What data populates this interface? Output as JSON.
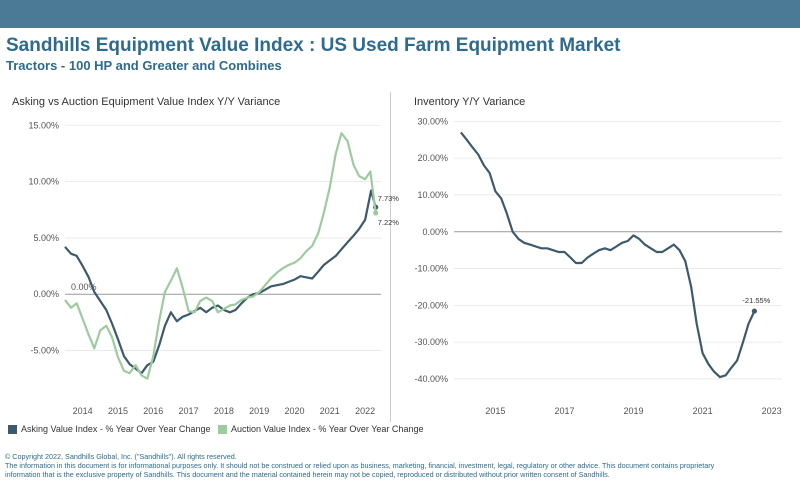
{
  "header": {
    "title": "Sandhills Equipment Value Index : US Used Farm Equipment Market",
    "subtitle": "Tractors - 100 HP and Greater and Combines"
  },
  "colors": {
    "topbar": "#4a7a96",
    "asking": "#3d5a6c",
    "auction": "#9ecb9e",
    "title": "#2e6b8c"
  },
  "chart_data": [
    {
      "type": "line",
      "title": "Asking vs Auction Equipment Value Index Y/Y Variance",
      "xlabel": "",
      "ylabel": "",
      "xlim": [
        2013.5,
        2022.45
      ],
      "ylim": [
        -8.5,
        16.0
      ],
      "y_ticks": [
        -5,
        0,
        5,
        10,
        15
      ],
      "y_tick_labels": [
        "-5.00%",
        "0.00%",
        "5.00%",
        "10.00%",
        "15.00%"
      ],
      "x_ticks": [
        2014,
        2015,
        2016,
        2017,
        2018,
        2019,
        2020,
        2021,
        2022
      ],
      "x_tick_labels": [
        "2014",
        "2015",
        "2016",
        "2017",
        "2018",
        "2019",
        "2020",
        "2021",
        "2022"
      ],
      "zero_label": "0.00%",
      "series": [
        {
          "name": "Asking Value Index - % Year Over Year Change",
          "x": [
            2013.5,
            2013.67,
            2013.83,
            2014.0,
            2014.17,
            2014.33,
            2014.5,
            2014.67,
            2014.83,
            2015.0,
            2015.17,
            2015.33,
            2015.5,
            2015.67,
            2015.83,
            2016.0,
            2016.17,
            2016.33,
            2016.5,
            2016.67,
            2016.83,
            2017.0,
            2017.17,
            2017.33,
            2017.5,
            2017.67,
            2017.83,
            2018.0,
            2018.17,
            2018.33,
            2018.5,
            2018.67,
            2018.83,
            2019.0,
            2019.17,
            2019.33,
            2019.5,
            2019.67,
            2019.83,
            2020.0,
            2020.17,
            2020.33,
            2020.5,
            2020.67,
            2020.83,
            2021.0,
            2021.17,
            2021.33,
            2021.5,
            2021.67,
            2021.83,
            2022.0,
            2022.17,
            2022.3
          ],
          "values": [
            4.2,
            3.6,
            3.4,
            2.5,
            1.5,
            0.2,
            -0.6,
            -1.4,
            -2.6,
            -4.0,
            -5.5,
            -6.2,
            -6.6,
            -7.0,
            -6.3,
            -6.0,
            -4.5,
            -2.8,
            -1.6,
            -2.4,
            -2.0,
            -1.8,
            -1.5,
            -1.2,
            -1.6,
            -1.2,
            -1.0,
            -1.4,
            -1.6,
            -1.4,
            -0.8,
            -0.3,
            0.0,
            0.1,
            0.4,
            0.7,
            0.8,
            0.9,
            1.1,
            1.3,
            1.6,
            1.5,
            1.4,
            2.0,
            2.6,
            3.0,
            3.4,
            4.0,
            4.6,
            5.2,
            5.8,
            6.6,
            9.2,
            7.73
          ],
          "end_label": "7.73%"
        },
        {
          "name": "Auction Value Index - % Year Over Year Change",
          "x": [
            2013.5,
            2013.67,
            2013.83,
            2014.0,
            2014.17,
            2014.33,
            2014.5,
            2014.67,
            2014.83,
            2015.0,
            2015.17,
            2015.33,
            2015.5,
            2015.67,
            2015.83,
            2016.0,
            2016.17,
            2016.33,
            2016.5,
            2016.67,
            2016.83,
            2017.0,
            2017.17,
            2017.33,
            2017.5,
            2017.67,
            2017.83,
            2018.0,
            2018.17,
            2018.33,
            2018.5,
            2018.67,
            2018.83,
            2019.0,
            2019.17,
            2019.33,
            2019.5,
            2019.67,
            2019.83,
            2020.0,
            2020.17,
            2020.33,
            2020.5,
            2020.67,
            2020.83,
            2021.0,
            2021.17,
            2021.33,
            2021.5,
            2021.67,
            2021.83,
            2022.0,
            2022.15,
            2022.3
          ],
          "values": [
            -0.5,
            -1.2,
            -0.8,
            -2.2,
            -3.6,
            -4.8,
            -3.2,
            -2.8,
            -3.8,
            -5.6,
            -6.8,
            -7.0,
            -6.3,
            -7.2,
            -7.5,
            -5.5,
            -2.3,
            0.2,
            1.2,
            2.3,
            0.6,
            -1.5,
            -1.6,
            -0.6,
            -0.3,
            -0.6,
            -1.6,
            -1.3,
            -1.0,
            -0.9,
            -0.5,
            -0.3,
            -0.2,
            0.2,
            0.8,
            1.4,
            1.9,
            2.3,
            2.6,
            2.8,
            3.2,
            3.8,
            4.3,
            5.4,
            7.2,
            9.5,
            12.5,
            14.3,
            13.6,
            11.5,
            10.5,
            10.2,
            10.9,
            7.22
          ],
          "end_label": "7.22%"
        }
      ]
    },
    {
      "type": "line",
      "title": "Inventory Y/Y Variance",
      "xlabel": "",
      "ylabel": "",
      "xlim": [
        2013.8,
        2023.3
      ],
      "ylim": [
        -43,
        32
      ],
      "y_ticks": [
        -40,
        -30,
        -20,
        -10,
        0,
        10,
        20,
        30
      ],
      "y_tick_labels": [
        "-40.00%",
        "-30.00%",
        "-20.00%",
        "-10.00%",
        "0.00%",
        "10.00%",
        "20.00%",
        "30.00%"
      ],
      "x_ticks": [
        2015,
        2017,
        2019,
        2021,
        2023
      ],
      "x_tick_labels": [
        "2015",
        "2017",
        "2019",
        "2021",
        "2023"
      ],
      "series": [
        {
          "name": "Inventory Y/Y Variance",
          "x": [
            2014.0,
            2014.17,
            2014.33,
            2014.5,
            2014.67,
            2014.83,
            2015.0,
            2015.17,
            2015.33,
            2015.5,
            2015.67,
            2015.83,
            2016.0,
            2016.17,
            2016.33,
            2016.5,
            2016.67,
            2016.83,
            2017.0,
            2017.17,
            2017.33,
            2017.5,
            2017.67,
            2017.83,
            2018.0,
            2018.17,
            2018.33,
            2018.5,
            2018.67,
            2018.83,
            2019.0,
            2019.17,
            2019.33,
            2019.5,
            2019.67,
            2019.83,
            2020.0,
            2020.17,
            2020.33,
            2020.5,
            2020.67,
            2020.83,
            2021.0,
            2021.17,
            2021.33,
            2021.5,
            2021.67,
            2021.83,
            2022.0,
            2022.17,
            2022.33,
            2022.5,
            2022.67,
            2022.83,
            2023.0
          ],
          "values": [
            27,
            25,
            23,
            21,
            18,
            16,
            11,
            9,
            5,
            0,
            -2,
            -3,
            -3.5,
            -4,
            -4.5,
            -4.5,
            -5,
            -5.5,
            -5.5,
            -7,
            -8.5,
            -8.5,
            -7,
            -6,
            -5,
            -4.5,
            -5,
            -4,
            -3,
            -2.5,
            -1,
            -2,
            -3.5,
            -4.5,
            -5.5,
            -5.5,
            -4.5,
            -3.5,
            -5,
            -8,
            -15,
            -25,
            -33,
            -36,
            -38,
            -39.5,
            -39,
            -37,
            -35,
            -30,
            -25,
            -21.55,
            null,
            null,
            null
          ],
          "end_label": "-21.55%"
        }
      ]
    }
  ],
  "legend": {
    "asking": "Asking Value Index - % Year Over Year Change",
    "auction": "Auction Value Index - % Year Over Year Change"
  },
  "footer": {
    "line1": "© Copyright 2022, Sandhills Global, Inc. (\"Sandhills\"). All rights reserved.",
    "line2": "The information in this document is for informational purposes only.  It should not be construed or relied upon as business, marketing, financial, investment, legal, regulatory or other advice. This document contains proprietary",
    "line3": "information that is the exclusive property of Sandhills. This document and the material contained herein may not be copied, reproduced or distributed without prior written consent of Sandhills."
  }
}
